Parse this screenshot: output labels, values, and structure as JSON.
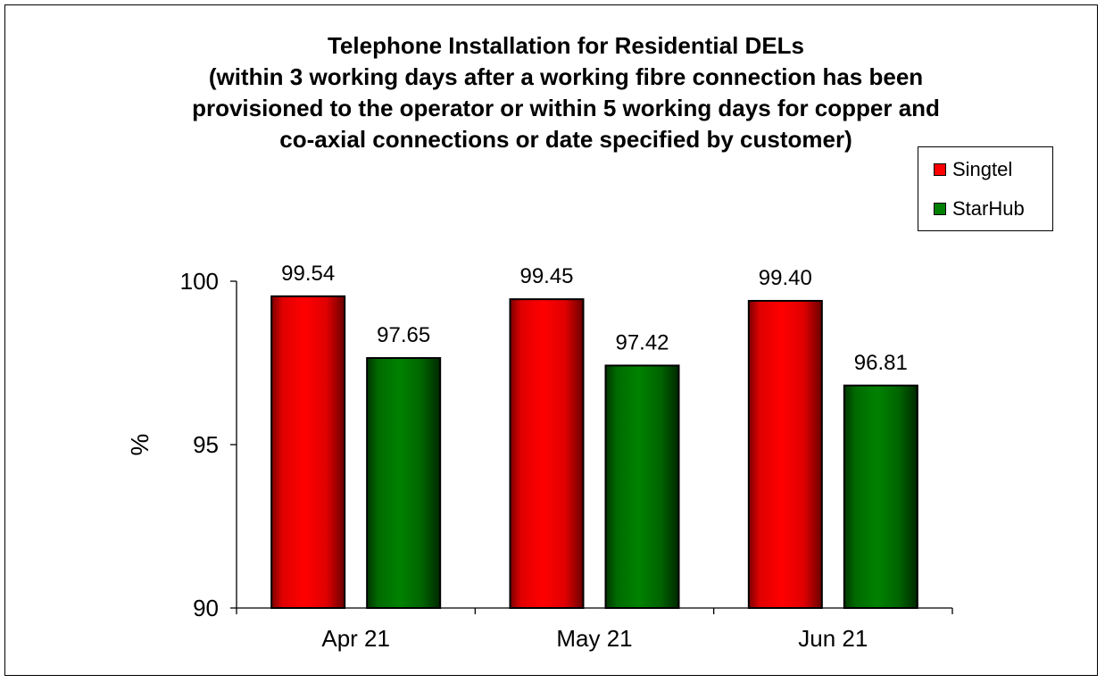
{
  "chart_data": {
    "type": "bar",
    "title_lines": [
      "Telephone Installation for Residential DELs",
      "(within 3 working days after a working fibre connection has been",
      "provisioned to the operator or within 5 working days for copper and",
      "co-axial connections or date specified by customer)"
    ],
    "categories": [
      "Apr 21",
      "May 21",
      "Jun 21"
    ],
    "series": [
      {
        "name": "Singtel",
        "values": [
          99.54,
          99.45,
          99.4
        ],
        "labels": [
          "99.54",
          "99.45",
          "99.40"
        ],
        "color": "#ff0000"
      },
      {
        "name": "StarHub",
        "values": [
          97.65,
          97.42,
          96.81
        ],
        "labels": [
          "97.65",
          "97.42",
          "96.81"
        ],
        "color": "#008000"
      }
    ],
    "xlabel": "",
    "ylabel": "%",
    "ylim": [
      90,
      100
    ],
    "yticks": [
      "90",
      "95",
      "100"
    ],
    "grid": false,
    "legend_position": "top-right"
  }
}
